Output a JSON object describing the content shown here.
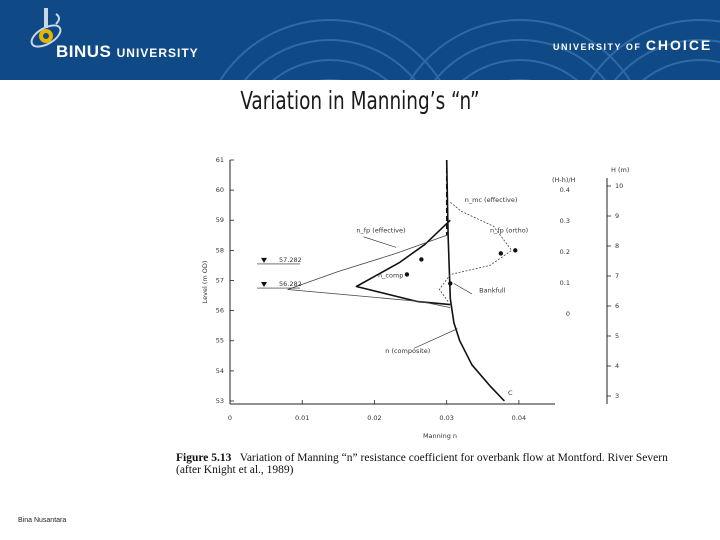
{
  "header": {
    "brand_name": "BINUS",
    "brand_suffix": "UNIVERSITY",
    "tagline_prefix": "UNIVERSITY OF",
    "tagline_word": "CHOICE",
    "colors": {
      "band": "#0f4a86",
      "arc": "#2f6aa6",
      "logo_accent": "#e8b400"
    }
  },
  "slide": {
    "title": "Variation in Manning’s “n”"
  },
  "figure": {
    "caption_label": "Figure 5.13",
    "caption_text": "Variation of Manning “n” resistance coefficient for overbank flow at Montford. River Severn (after Knight et al., 1989)"
  },
  "chart_data": {
    "type": "line",
    "title": "",
    "xlabel": "Manning  n",
    "ylabel": "Level (m OD)",
    "xlim": [
      0,
      0.045
    ],
    "ylim": [
      52.9,
      61.0
    ],
    "x_ticks": [
      "0",
      "0.01",
      "0.02",
      "0.03",
      "0.04"
    ],
    "y_ticks": [
      "53",
      "54",
      "55",
      "56",
      "57",
      "58",
      "59",
      "60",
      "61"
    ],
    "right_axis_label": "H (m)",
    "right_axis_ticks": [
      "3",
      "4",
      "5",
      "6",
      "7",
      "8",
      "9",
      "10"
    ],
    "ratio_label": "(H-h)/H",
    "ratio_ticks": [
      "0",
      "0.1",
      "0.2",
      "0.3",
      "0.4"
    ],
    "stage_markers": [
      "57.282",
      "56.282"
    ],
    "annotations": [
      "n_mc (effective)",
      "n_fp (effective)",
      "n_fp (ortho)",
      "n_comp",
      "n (composite)",
      "Bankfull",
      "C"
    ],
    "series": [
      {
        "name": "composite",
        "x": [
          0.038,
          0.036,
          0.0335,
          0.0318,
          0.031,
          0.0305,
          0.0302,
          0.03
        ],
        "y": [
          53.0,
          53.5,
          54.2,
          55.0,
          55.6,
          56.4,
          58.5,
          61.0
        ]
      },
      {
        "name": "n_fp effective",
        "x": [
          0.0305,
          0.026,
          0.0175,
          0.0235,
          0.027,
          0.0305
        ],
        "y": [
          56.2,
          56.3,
          56.8,
          57.6,
          58.2,
          59.0
        ]
      },
      {
        "name": "n_mc effective",
        "x": [
          0.0302,
          0.029,
          0.0305,
          0.036,
          0.039,
          0.0365,
          0.032,
          0.0305
        ],
        "y": [
          56.3,
          56.7,
          57.2,
          57.5,
          58.0,
          58.8,
          59.3,
          59.6
        ]
      },
      {
        "name": "n_comp",
        "x": [
          0.0305,
          0.0265,
          0.008,
          0.015,
          0.023,
          0.03
        ],
        "y": [
          56.1,
          56.3,
          56.7,
          57.3,
          57.9,
          58.5
        ]
      }
    ],
    "points": [
      {
        "name": "n_fp ortho point",
        "x": 0.0395,
        "y": 58.0
      },
      {
        "name": "n_fp ortho point 2",
        "x": 0.0375,
        "y": 57.9
      },
      {
        "name": "bankfull point",
        "x": 0.0305,
        "y": 56.9
      },
      {
        "name": "n_comp point",
        "x": 0.0265,
        "y": 57.7
      },
      {
        "name": "n_comp point 2",
        "x": 0.0245,
        "y": 57.2
      }
    ]
  },
  "footer": {
    "text": "Bina Nusantara"
  }
}
